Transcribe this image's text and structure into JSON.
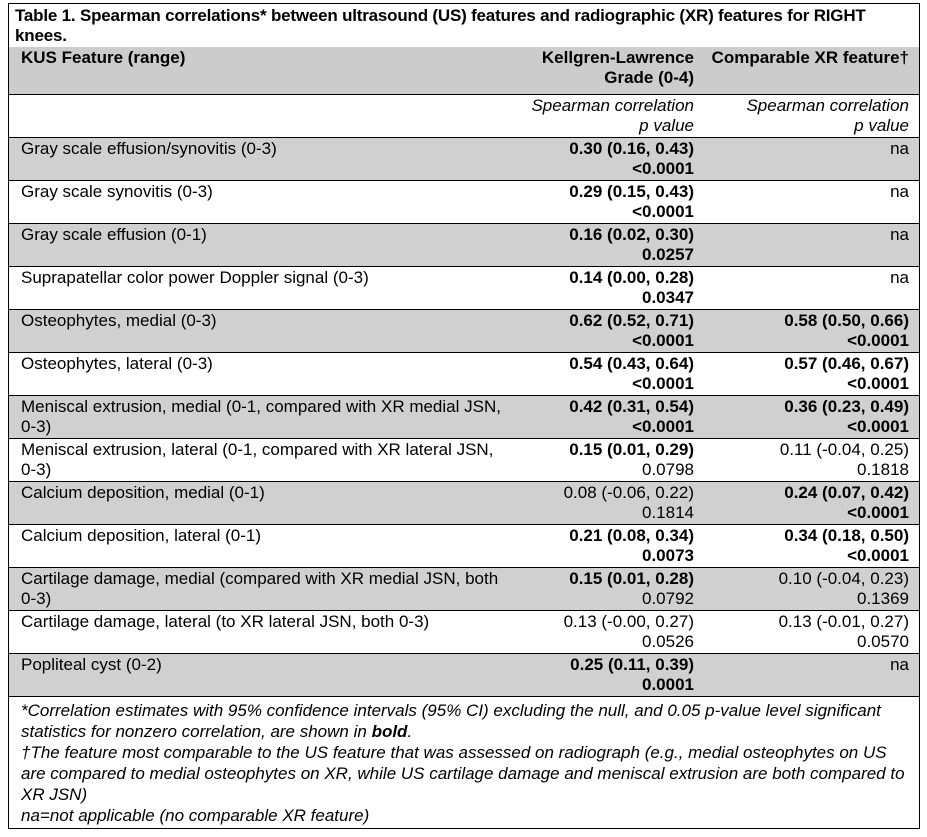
{
  "title": "Table 1. Spearman correlations* between ultrasound (US) features and radiographic (XR) features for RIGHT knees.",
  "header": {
    "col1": "KUS Feature (range)",
    "col2": "Kellgren-Lawrence Grade (0-4)",
    "col3": "Comparable XR feature†"
  },
  "subheader": {
    "col2_line1": "Spearman correlation",
    "col2_line2": "p value",
    "col3_line1": "Spearman correlation",
    "col3_line2": "p value"
  },
  "rows": [
    {
      "feature": "Gray scale effusion/synovitis (0-3)",
      "kl_ci": "0.30 (0.16, 0.43)",
      "kl_p": "<0.0001",
      "kl_ci_bold": true,
      "kl_p_bold": true,
      "xr_ci": "na",
      "xr_p": "",
      "xr_ci_bold": false,
      "xr_p_bold": false
    },
    {
      "feature": "Gray scale synovitis (0-3)",
      "kl_ci": "0.29 (0.15, 0.43)",
      "kl_p": "<0.0001",
      "kl_ci_bold": true,
      "kl_p_bold": true,
      "xr_ci": "na",
      "xr_p": "",
      "xr_ci_bold": false,
      "xr_p_bold": false
    },
    {
      "feature": "Gray scale effusion (0-1)",
      "kl_ci": "0.16 (0.02, 0.30)",
      "kl_p": "0.0257",
      "kl_ci_bold": true,
      "kl_p_bold": true,
      "xr_ci": "na",
      "xr_p": "",
      "xr_ci_bold": false,
      "xr_p_bold": false
    },
    {
      "feature": "Suprapatellar color power Doppler signal (0-3)",
      "kl_ci": "0.14 (0.00, 0.28)",
      "kl_p": "0.0347",
      "kl_ci_bold": true,
      "kl_p_bold": true,
      "xr_ci": "na",
      "xr_p": "",
      "xr_ci_bold": false,
      "xr_p_bold": false
    },
    {
      "feature": "Osteophytes, medial (0-3)",
      "kl_ci": "0.62 (0.52, 0.71)",
      "kl_p": "<0.0001",
      "kl_ci_bold": true,
      "kl_p_bold": true,
      "xr_ci": "0.58 (0.50, 0.66)",
      "xr_p": "<0.0001",
      "xr_ci_bold": true,
      "xr_p_bold": true
    },
    {
      "feature": "Osteophytes, lateral (0-3)",
      "kl_ci": "0.54 (0.43, 0.64)",
      "kl_p": "<0.0001",
      "kl_ci_bold": true,
      "kl_p_bold": true,
      "xr_ci": "0.57 (0.46, 0.67)",
      "xr_p": "<0.0001",
      "xr_ci_bold": true,
      "xr_p_bold": true
    },
    {
      "feature": "Meniscal extrusion, medial (0-1, compared with XR medial JSN, 0-3)",
      "kl_ci": "0.42 (0.31, 0.54)",
      "kl_p": "<0.0001",
      "kl_ci_bold": true,
      "kl_p_bold": true,
      "xr_ci": "0.36 (0.23, 0.49)",
      "xr_p": "<0.0001",
      "xr_ci_bold": true,
      "xr_p_bold": true
    },
    {
      "feature": "Meniscal extrusion, lateral (0-1, compared with XR lateral JSN, 0-3)",
      "kl_ci": "0.15 (0.01, 0.29)",
      "kl_p": "0.0798",
      "kl_ci_bold": true,
      "kl_p_bold": false,
      "xr_ci": "0.11 (-0.04, 0.25)",
      "xr_p": "0.1818",
      "xr_ci_bold": false,
      "xr_p_bold": false
    },
    {
      "feature": "Calcium deposition, medial (0-1)",
      "kl_ci": "0.08 (-0.06, 0.22)",
      "kl_p": "0.1814",
      "kl_ci_bold": false,
      "kl_p_bold": false,
      "xr_ci": "0.24 (0.07, 0.42)",
      "xr_p": "<0.0001",
      "xr_ci_bold": true,
      "xr_p_bold": true
    },
    {
      "feature": "Calcium deposition, lateral (0-1)",
      "kl_ci": "0.21 (0.08, 0.34)",
      "kl_p": "0.0073",
      "kl_ci_bold": true,
      "kl_p_bold": true,
      "xr_ci": "0.34 (0.18, 0.50)",
      "xr_p": "<0.0001",
      "xr_ci_bold": true,
      "xr_p_bold": true
    },
    {
      "feature": "Cartilage damage, medial (compared with XR medial JSN, both 0-3)",
      "kl_ci": "0.15 (0.01, 0.28)",
      "kl_p": "0.0792",
      "kl_ci_bold": true,
      "kl_p_bold": false,
      "xr_ci": "0.10 (-0.04, 0.23)",
      "xr_p": "0.1369",
      "xr_ci_bold": false,
      "xr_p_bold": false
    },
    {
      "feature": "Cartilage damage, lateral (to XR lateral JSN, both 0-3)",
      "kl_ci": "0.13 (-0.00, 0.27)",
      "kl_p": "0.0526",
      "kl_ci_bold": false,
      "kl_p_bold": false,
      "xr_ci": "0.13 (-0.01, 0.27)",
      "xr_p": "0.0570",
      "xr_ci_bold": false,
      "xr_p_bold": false
    },
    {
      "feature": "Popliteal cyst (0-2)",
      "kl_ci": "0.25 (0.11, 0.39)",
      "kl_p": "0.0001",
      "kl_ci_bold": true,
      "kl_p_bold": true,
      "xr_ci": "na",
      "xr_p": "",
      "xr_ci_bold": false,
      "xr_p_bold": false
    }
  ],
  "footnotes": {
    "note1_a": "*Correlation estimates with 95% confidence intervals (95% CI) excluding the null, and 0.05 p-value level significant statistics for nonzero correlation, are shown in ",
    "note1_bold": "bold",
    "note1_b": ".",
    "note2": "†The feature most comparable to the US feature that was assessed on radiograph (e.g., medial osteophytes on US are compared to medial osteophytes on XR, while US cartilage damage and meniscal extrusion are both compared to XR JSN)",
    "note3": "na=not applicable (no comparable XR feature)"
  },
  "colors": {
    "row_shade": "#d0d0d0",
    "header_shade": "#cccccc"
  }
}
